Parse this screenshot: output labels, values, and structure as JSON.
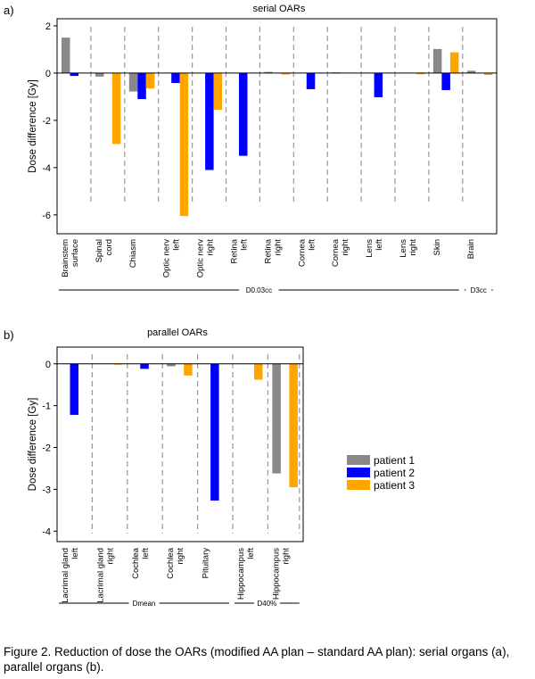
{
  "figure": {
    "caption": "Figure 2. Reduction of dose the OARs (modified AA plan – standard AA plan): serial organs (a), parallel organs (b)."
  },
  "legend": [
    {
      "name": "patient 1",
      "color": "#888888"
    },
    {
      "name": "patient 2",
      "color": "#0000ff"
    },
    {
      "name": "patient 3",
      "color": "#ffa500"
    }
  ],
  "chart_data": [
    {
      "type": "bar",
      "panel": "a)",
      "title": "serial OARs",
      "ylabel": "Dose difference [Gy]",
      "ylim": [
        -6.8,
        2.3
      ],
      "yticks": [
        "2",
        "0",
        "-2",
        "-4",
        "-6"
      ],
      "ytick_values": [
        2,
        0,
        -2,
        -4,
        -6
      ],
      "categories": [
        [
          "Brainstem",
          "surface"
        ],
        [
          "Spinal",
          "cord"
        ],
        [
          "Chiasm"
        ],
        [
          "Optic nerv",
          "left"
        ],
        [
          "Optic nerv",
          "right"
        ],
        [
          "Retina",
          "left"
        ],
        [
          "Retina",
          "right"
        ],
        [
          "Cornea",
          "left"
        ],
        [
          "Cornea",
          "right"
        ],
        [
          "Lens",
          "left"
        ],
        [
          "Lens",
          "right"
        ],
        [
          "Skin"
        ],
        [
          "Brain"
        ]
      ],
      "series": [
        {
          "name": "patient 1",
          "values": [
            1.5,
            -0.15,
            -0.78,
            0.0,
            0.0,
            0.0,
            0.05,
            0.0,
            0.03,
            0.0,
            0.0,
            1.02,
            0.1
          ]
        },
        {
          "name": "patient 2",
          "values": [
            -0.12,
            0.0,
            -1.1,
            -0.42,
            -4.1,
            -3.5,
            0.0,
            -0.68,
            0.0,
            -1.02,
            0.0,
            -0.72,
            0.0
          ]
        },
        {
          "name": "patient 3",
          "values": [
            0.0,
            -3.0,
            -0.65,
            -6.05,
            -1.55,
            0.0,
            -0.06,
            0.0,
            0.0,
            0.0,
            -0.05,
            0.88,
            -0.08
          ]
        }
      ],
      "groups": [
        {
          "label": "D0.03cc",
          "from": 0,
          "to": 11
        },
        {
          "label": "D3cc",
          "from": 12,
          "to": 12
        }
      ]
    },
    {
      "type": "bar",
      "panel": "b)",
      "title": "parallel OARs",
      "ylabel": "Dose difference [Gy]",
      "ylim": [
        -4.25,
        0.4
      ],
      "yticks": [
        "0",
        "-1",
        "-2",
        "-3",
        "-4"
      ],
      "ytick_values": [
        0,
        -1,
        -2,
        -3,
        -4
      ],
      "categories": [
        [
          "Lacrimal gland",
          "left"
        ],
        [
          "Lacrimal gland",
          "right"
        ],
        [
          "Cochlea",
          "left"
        ],
        [
          "Cochlea",
          "right"
        ],
        [
          "Pituitary"
        ],
        [
          "Hippocampus",
          "left"
        ],
        [
          "Hippocampus",
          "right"
        ]
      ],
      "series": [
        {
          "name": "patient 1",
          "values": [
            0.0,
            0.0,
            0.0,
            -0.06,
            0.0,
            0.0,
            -2.62
          ]
        },
        {
          "name": "patient 2",
          "values": [
            -1.22,
            0.0,
            -0.12,
            0.0,
            -3.27,
            0.0,
            0.0
          ]
        },
        {
          "name": "patient 3",
          "values": [
            0.0,
            -0.02,
            0.0,
            -0.28,
            0.0,
            -0.38,
            -2.95
          ]
        }
      ],
      "groups": [
        {
          "label": "Dmean",
          "from": 0,
          "to": 4
        },
        {
          "label": "D40%",
          "from": 5,
          "to": 6
        }
      ]
    }
  ]
}
